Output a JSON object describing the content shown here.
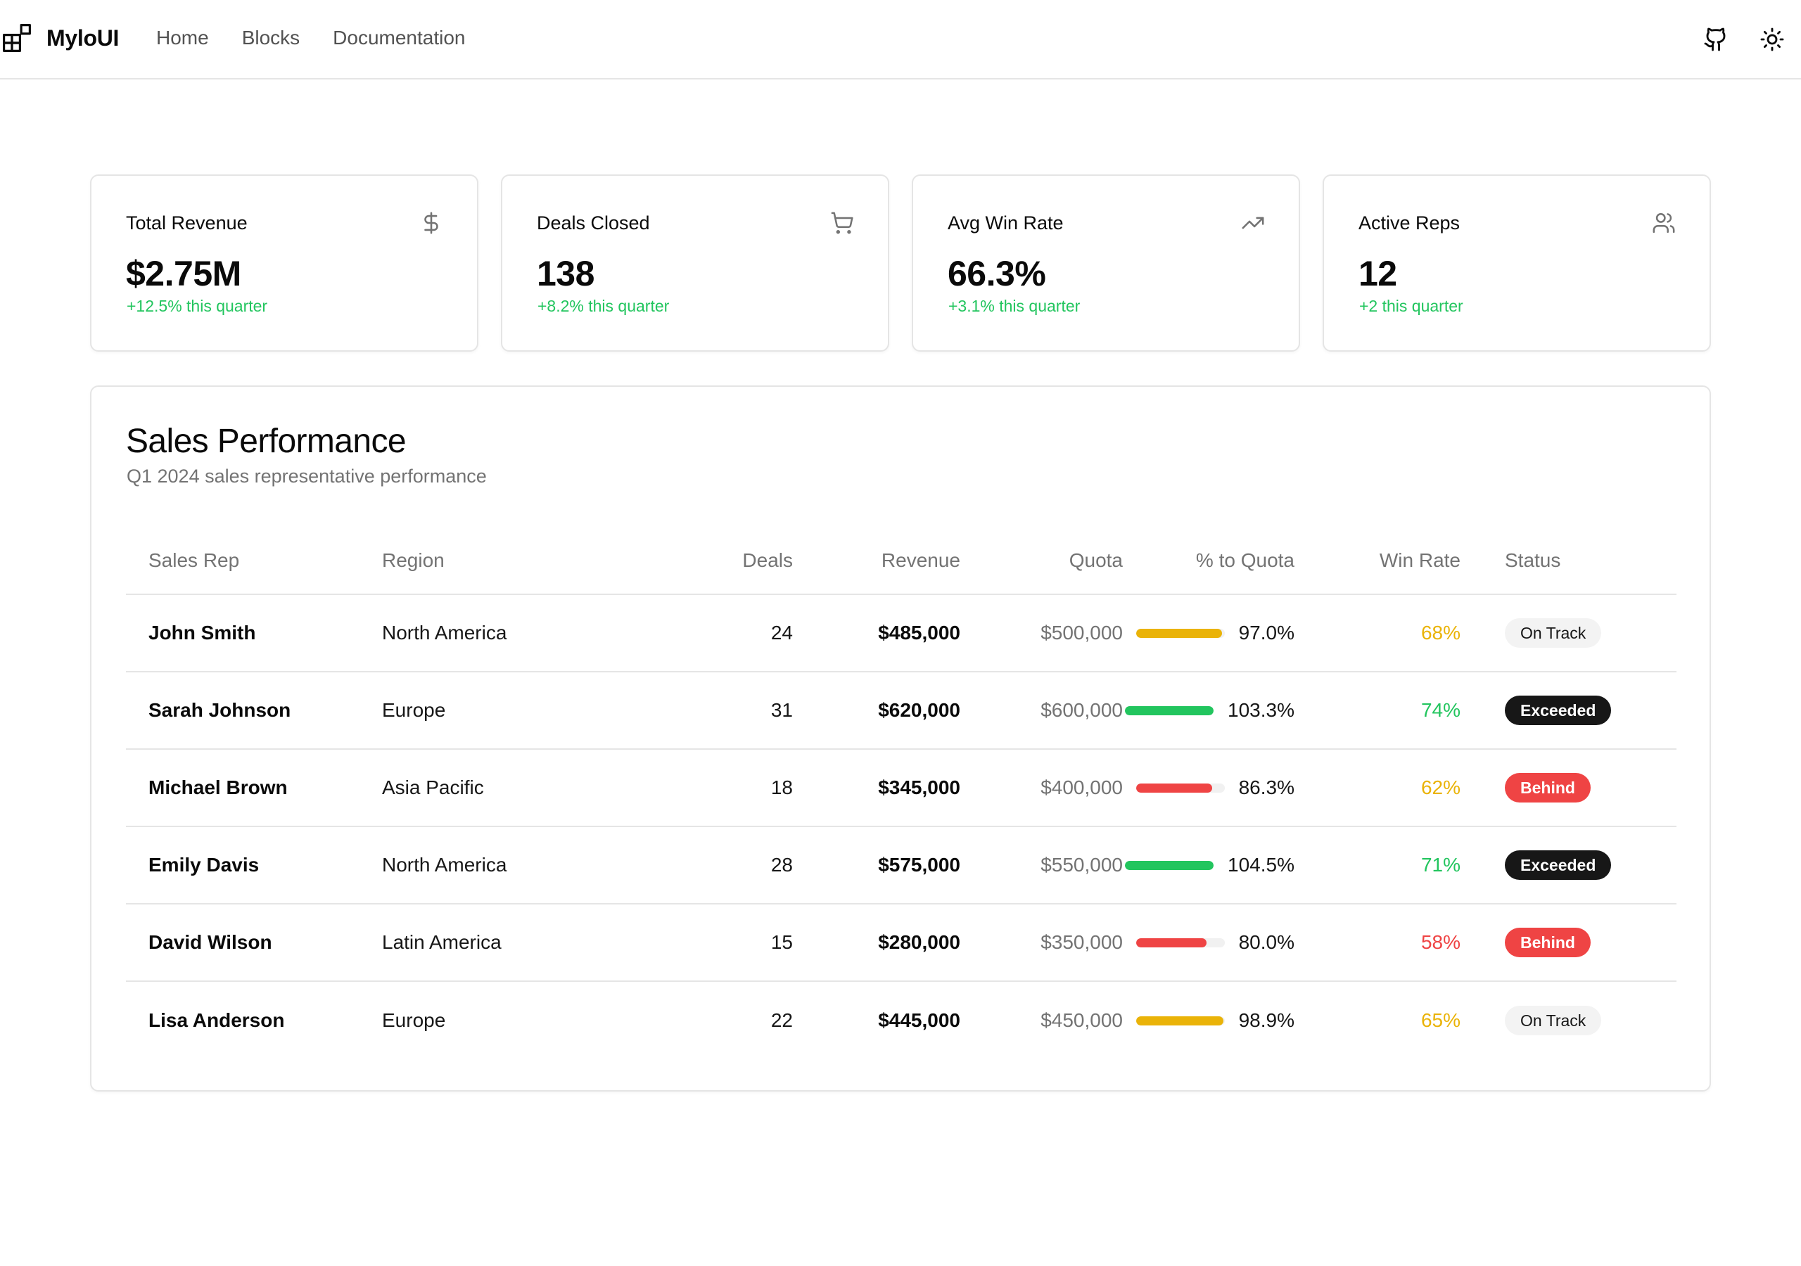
{
  "app": {
    "brand": "MyloUI",
    "nav": [
      {
        "id": "home",
        "label": "Home"
      },
      {
        "id": "blocks",
        "label": "Blocks"
      },
      {
        "id": "documentation",
        "label": "Documentation"
      }
    ],
    "actions": [
      {
        "id": "github",
        "icon": "github-icon"
      },
      {
        "id": "theme",
        "icon": "sun-icon"
      }
    ]
  },
  "stats": [
    {
      "title": "Total Revenue",
      "value": "$2.75M",
      "change": "+12.5% this quarter",
      "icon": "dollar-icon"
    },
    {
      "title": "Deals Closed",
      "value": "138",
      "change": "+8.2% this quarter",
      "icon": "cart-icon"
    },
    {
      "title": "Avg Win Rate",
      "value": "66.3%",
      "change": "+3.1% this quarter",
      "icon": "trending-up-icon"
    },
    {
      "title": "Active Reps",
      "value": "12",
      "change": "+2 this quarter",
      "icon": "users-icon"
    }
  ],
  "panel": {
    "title": "Sales Performance",
    "subtitle": "Q1 2024 sales representative performance"
  },
  "table": {
    "columns": [
      "Sales Rep",
      "Region",
      "Deals",
      "Revenue",
      "Quota",
      "% to Quota",
      "Win Rate",
      "Status"
    ],
    "rows": [
      {
        "rep": "John Smith",
        "region": "North America",
        "deals": "24",
        "revenue": "$485,000",
        "quota": "$500,000",
        "pct": "97.0%",
        "pct_value": 97.0,
        "win": "68%",
        "status": "On Track"
      },
      {
        "rep": "Sarah Johnson",
        "region": "Europe",
        "deals": "31",
        "revenue": "$620,000",
        "quota": "$600,000",
        "pct": "103.3%",
        "pct_value": 103.3,
        "win": "74%",
        "status": "Exceeded"
      },
      {
        "rep": "Michael Brown",
        "region": "Asia Pacific",
        "deals": "18",
        "revenue": "$345,000",
        "quota": "$400,000",
        "pct": "86.3%",
        "pct_value": 86.3,
        "win": "62%",
        "status": "Behind"
      },
      {
        "rep": "Emily Davis",
        "region": "North America",
        "deals": "28",
        "revenue": "$575,000",
        "quota": "$550,000",
        "pct": "104.5%",
        "pct_value": 104.5,
        "win": "71%",
        "status": "Exceeded"
      },
      {
        "rep": "David Wilson",
        "region": "Latin America",
        "deals": "15",
        "revenue": "$280,000",
        "quota": "$350,000",
        "pct": "80.0%",
        "pct_value": 80.0,
        "win": "58%",
        "status": "Behind"
      },
      {
        "rep": "Lisa Anderson",
        "region": "Europe",
        "deals": "22",
        "revenue": "$445,000",
        "quota": "$450,000",
        "pct": "98.9%",
        "pct_value": 98.9,
        "win": "65%",
        "status": "On Track"
      }
    ]
  },
  "colors": {
    "positive": "#22c55e",
    "warning": "#eab308",
    "danger": "#ef4444",
    "dark": "#171717"
  }
}
